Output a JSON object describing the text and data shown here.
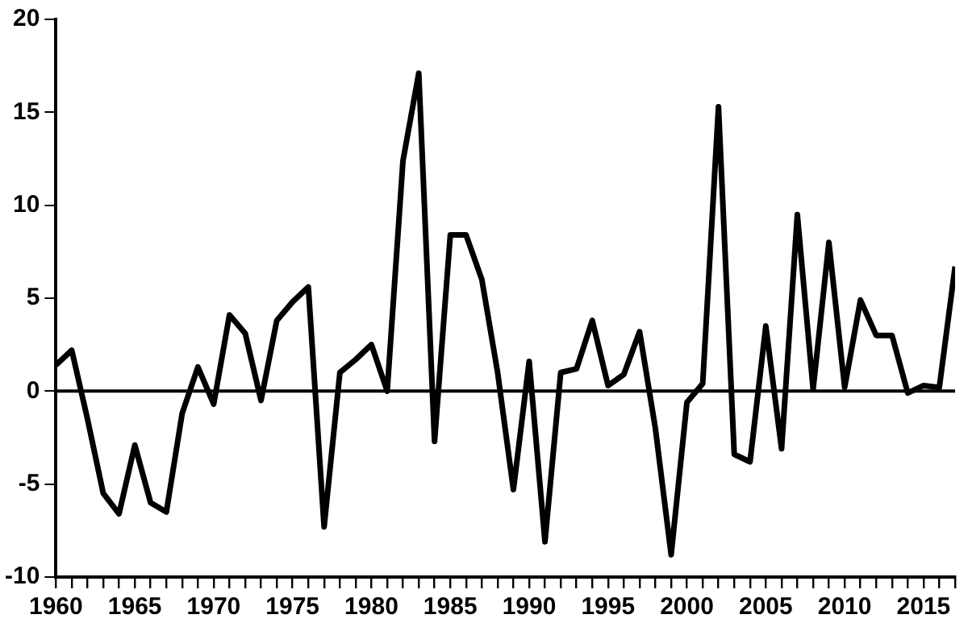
{
  "chart_data": {
    "type": "line",
    "x": [
      1960,
      1961,
      1962,
      1963,
      1964,
      1965,
      1966,
      1967,
      1968,
      1969,
      1970,
      1971,
      1972,
      1973,
      1974,
      1975,
      1976,
      1977,
      1978,
      1979,
      1980,
      1981,
      1982,
      1983,
      1984,
      1985,
      1986,
      1987,
      1988,
      1989,
      1990,
      1991,
      1992,
      1993,
      1994,
      1995,
      1996,
      1997,
      1998,
      1999,
      2000,
      2001,
      2002,
      2003,
      2004,
      2005,
      2006,
      2007,
      2008,
      2009,
      2010,
      2011,
      2012,
      2013,
      2014,
      2015,
      2016,
      2017
    ],
    "series": [
      {
        "color": "#000000",
        "values": [
          1.4,
          2.2,
          -1.5,
          -5.5,
          -6.6,
          -2.9,
          -6.0,
          -6.5,
          -1.2,
          1.3,
          -0.7,
          4.1,
          3.1,
          -0.5,
          3.8,
          4.8,
          5.6,
          -7.3,
          1.0,
          1.7,
          2.5,
          0.0,
          12.4,
          17.1,
          -2.7,
          8.4,
          8.4,
          6.0,
          1.0,
          -5.3,
          1.6,
          -8.1,
          1.0,
          1.2,
          3.8,
          0.3,
          0.9,
          3.2,
          -2.0,
          -8.8,
          -0.6,
          0.4,
          15.3,
          -3.4,
          -3.8,
          3.5,
          -3.1,
          9.5,
          0.1,
          8.0,
          0.2,
          4.9,
          3.0,
          3.0,
          -0.1,
          0.3,
          0.2,
          6.7
        ]
      }
    ],
    "xlim": [
      1960,
      2017
    ],
    "xticks": [
      1960,
      {
        "value": 1961,
        "label": null
      },
      {
        "value": 1962,
        "label": null
      },
      {
        "value": 1963,
        "label": null
      },
      {
        "value": 1964,
        "label": null
      },
      1965,
      {
        "value": 1966,
        "label": null
      },
      {
        "value": 1967,
        "label": null
      },
      {
        "value": 1968,
        "label": null
      },
      {
        "value": 1969,
        "label": null
      },
      1970,
      {
        "value": 1971,
        "label": null
      },
      {
        "value": 1972,
        "label": null
      },
      {
        "value": 1973,
        "label": null
      },
      {
        "value": 1974,
        "label": null
      },
      1975,
      {
        "value": 1976,
        "label": null
      },
      {
        "value": 1977,
        "label": null
      },
      {
        "value": 1978,
        "label": null
      },
      {
        "value": 1979,
        "label": null
      },
      1980,
      {
        "value": 1981,
        "label": null
      },
      {
        "value": 1982,
        "label": null
      },
      {
        "value": 1983,
        "label": null
      },
      {
        "value": 1984,
        "label": null
      },
      1985,
      {
        "value": 1986,
        "label": null
      },
      {
        "value": 1987,
        "label": null
      },
      {
        "value": 1988,
        "label": null
      },
      {
        "value": 1989,
        "label": null
      },
      1990,
      {
        "value": 1991,
        "label": null
      },
      {
        "value": 1992,
        "label": null
      },
      {
        "value": 1993,
        "label": null
      },
      {
        "value": 1994,
        "label": null
      },
      1995,
      {
        "value": 1996,
        "label": null
      },
      {
        "value": 1997,
        "label": null
      },
      {
        "value": 1998,
        "label": null
      },
      {
        "value": 1999,
        "label": null
      },
      2000,
      {
        "value": 2001,
        "label": null
      },
      {
        "value": 2002,
        "label": null
      },
      {
        "value": 2003,
        "label": null
      },
      {
        "value": 2004,
        "label": null
      },
      2005,
      {
        "value": 2006,
        "label": null
      },
      {
        "value": 2007,
        "label": null
      },
      {
        "value": 2008,
        "label": null
      },
      {
        "value": 2009,
        "label": null
      },
      2010,
      {
        "value": 2011,
        "label": null
      },
      {
        "value": 2012,
        "label": null
      },
      {
        "value": 2013,
        "label": null
      },
      {
        "value": 2014,
        "label": null
      },
      2015,
      {
        "value": 2016,
        "label": null
      },
      {
        "value": 2017,
        "label": null
      }
    ],
    "ylim": [
      -10,
      20
    ],
    "yticks": [
      -10,
      -5,
      0,
      5,
      10,
      15,
      20
    ],
    "ref_lines": [
      {
        "axis": "y",
        "value": 0,
        "color": "#000000"
      }
    ],
    "grid": false,
    "legend": false,
    "marker": "none",
    "line_style": "solid"
  }
}
